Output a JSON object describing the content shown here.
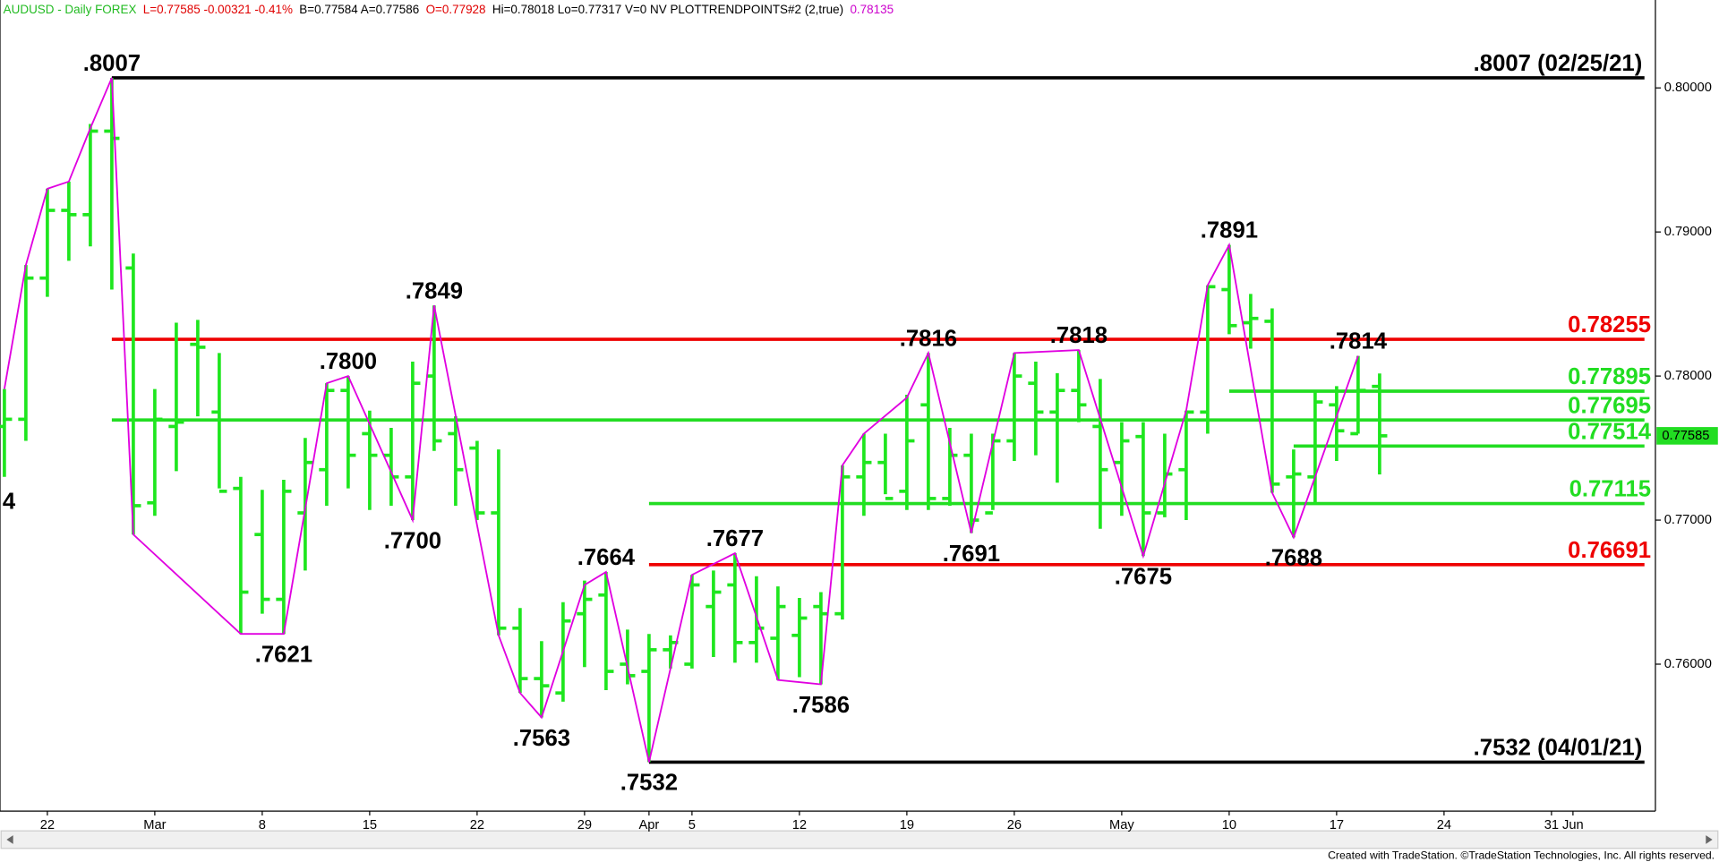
{
  "chart_data": {
    "type": "ohlc",
    "header": [
      {
        "text": "AUDUSD - Daily  FOREX",
        "color": "#22bb22"
      },
      {
        "text": "L=0.77585  -0.00321  -0.41%",
        "color": "#e00000"
      },
      {
        "text": "B=0.77584  A=0.77586",
        "color": "#000000"
      },
      {
        "text": "O=0.77928",
        "color": "#e00000"
      },
      {
        "text": "Hi=0.78018  Lo=0.77317  V=0  NV  PLOTTRENDPOINTS#2 (2,true)",
        "color": "#000000"
      },
      {
        "text": "0.78135",
        "color": "#cc00cc"
      }
    ],
    "footer": "Created with TradeStation. ©TradeStation Technologies, Inc. All rights reserved.",
    "color": "#1ee61e",
    "categories": [
      null,
      null,
      "22",
      null,
      null,
      null,
      null,
      "Mar",
      null,
      null,
      null,
      null,
      "8",
      null,
      null,
      null,
      null,
      "15",
      null,
      null,
      null,
      null,
      "22",
      null,
      null,
      null,
      null,
      "29",
      null,
      null,
      "Apr",
      null,
      "5",
      null,
      null,
      null,
      null,
      "12",
      null,
      null,
      null,
      null,
      "19",
      null,
      null,
      null,
      null,
      "26",
      null,
      null,
      null,
      null,
      "May",
      null,
      null,
      null,
      null,
      "10",
      null,
      null,
      null,
      null,
      "17",
      null,
      null,
      null,
      null,
      "24",
      null,
      null,
      null,
      null,
      "31",
      "Jun",
      null,
      null,
      null
    ],
    "open": [
      0.7765,
      0.777,
      0.7868,
      0.7915,
      0.7912,
      0.797,
      0.7875,
      0.7712,
      0.7765,
      0.7822,
      0.7775,
      0.7722,
      0.769,
      0.7645,
      0.7705,
      0.7735,
      0.779,
      0.776,
      0.7745,
      0.773,
      0.78,
      0.776,
      0.775,
      0.7705,
      0.7625,
      0.759,
      0.758,
      0.7635,
      0.7648,
      0.76,
      0.7595,
      0.761,
      0.76,
      0.764,
      0.7655,
      0.7615,
      0.7618,
      0.762,
      0.764,
      0.7635,
      0.773,
      0.774,
      0.772,
      0.778,
      0.7715,
      0.7745,
      0.7705,
      0.7755,
      0.7795,
      0.7775,
      0.779,
      0.7765,
      0.774,
      0.7758,
      0.7705,
      0.7735,
      0.7775,
      0.786,
      0.7837,
      0.7838,
      0.773,
      0.773,
      0.778,
      0.776,
      0.77928,
      null,
      null,
      null,
      null,
      null,
      null,
      null,
      null,
      null,
      null,
      null,
      null
    ],
    "high": [
      0.7791,
      0.7877,
      0.793,
      0.7935,
      0.7975,
      0.8007,
      0.7885,
      0.7791,
      0.7837,
      0.7839,
      0.7816,
      0.773,
      0.7721,
      0.7728,
      0.7757,
      0.7795,
      0.78,
      0.7776,
      0.7764,
      0.781,
      0.7849,
      0.7772,
      0.7755,
      0.7749,
      0.7639,
      0.7616,
      0.7643,
      0.7658,
      0.7664,
      0.7624,
      0.7621,
      0.762,
      0.7662,
      0.7665,
      0.7677,
      0.7661,
      0.7654,
      0.7646,
      0.765,
      0.7738,
      0.776,
      0.776,
      0.7787,
      0.7816,
      0.7764,
      0.776,
      0.776,
      0.7816,
      0.781,
      0.7802,
      0.7818,
      0.7798,
      0.7768,
      0.7768,
      0.776,
      0.7776,
      0.7863,
      0.7891,
      0.7857,
      0.7847,
      0.7749,
      0.7789,
      0.7793,
      0.7814,
      0.78018,
      null,
      null,
      null,
      null,
      null,
      null,
      null,
      null,
      null,
      null,
      null,
      null
    ],
    "low": [
      0.773,
      0.7755,
      0.7855,
      0.788,
      0.789,
      0.786,
      0.769,
      0.7703,
      0.7734,
      0.7772,
      0.7722,
      0.7621,
      0.7635,
      0.7621,
      0.7665,
      0.771,
      0.7722,
      0.7707,
      0.771,
      0.77,
      0.7748,
      0.771,
      0.77,
      0.762,
      0.758,
      0.7563,
      0.7574,
      0.7598,
      0.7582,
      0.7586,
      0.7532,
      0.7597,
      0.7597,
      0.7605,
      0.7601,
      0.7601,
      0.7589,
      0.7591,
      0.7586,
      0.7631,
      0.7703,
      0.7718,
      0.7707,
      0.7707,
      0.771,
      0.7691,
      0.7707,
      0.7741,
      0.7745,
      0.7726,
      0.7768,
      0.7694,
      0.7703,
      0.7675,
      0.7702,
      0.77,
      0.776,
      0.7829,
      0.7819,
      0.7719,
      0.7688,
      0.7711,
      0.7741,
      0.776,
      0.77317,
      null,
      null,
      null,
      null,
      null,
      null,
      null,
      null,
      null,
      null,
      null,
      null
    ],
    "close": [
      0.777,
      0.7868,
      0.7915,
      0.7912,
      0.797,
      0.7965,
      0.771,
      0.777,
      0.7768,
      0.782,
      0.772,
      0.765,
      0.7645,
      0.772,
      0.774,
      0.779,
      0.7745,
      0.7745,
      0.773,
      0.7795,
      0.7755,
      0.7735,
      0.7705,
      0.7625,
      0.759,
      0.7585,
      0.763,
      0.7645,
      0.7595,
      0.7592,
      0.761,
      0.7615,
      0.7655,
      0.765,
      0.7615,
      0.7625,
      0.764,
      0.7632,
      0.7635,
      0.773,
      0.774,
      0.7715,
      0.7755,
      0.7715,
      0.7745,
      0.77,
      0.7755,
      0.78,
      0.7775,
      0.779,
      0.778,
      0.7735,
      0.7755,
      0.7705,
      0.7732,
      0.7775,
      0.7862,
      0.7835,
      0.784,
      0.7725,
      0.7732,
      0.7782,
      0.7762,
      0.779,
      0.77585,
      null,
      null,
      null,
      null,
      null,
      null,
      null,
      null,
      null,
      null,
      null,
      null
    ],
    "zigzag": {
      "color": "#e000e0",
      "x": [
        0,
        1,
        2,
        3,
        4,
        5,
        6,
        11,
        13,
        15,
        16,
        19,
        20,
        23,
        24,
        25,
        27,
        28,
        30,
        32,
        34,
        36,
        38,
        39,
        40,
        42,
        43,
        45,
        47,
        50,
        53,
        55,
        56,
        57,
        59,
        60,
        63
      ],
      "values": [
        0.7791,
        0.7877,
        0.793,
        0.7935,
        0.7972,
        0.8007,
        0.769,
        0.7621,
        0.7621,
        0.7795,
        0.78,
        0.77,
        0.7849,
        0.762,
        0.758,
        0.7563,
        0.7655,
        0.7664,
        0.7532,
        0.7662,
        0.7677,
        0.7589,
        0.7586,
        0.7738,
        0.776,
        0.7785,
        0.7816,
        0.7691,
        0.7816,
        0.7818,
        0.7675,
        0.7776,
        0.7863,
        0.7891,
        0.7719,
        0.7688,
        0.7814
      ]
    },
    "pivots": [
      {
        "index": 0,
        "value": 0.7712,
        "label": "4",
        "position": "left"
      },
      {
        "index": 5,
        "value": 0.8007,
        "label": ".8007",
        "position": "above"
      },
      {
        "index": 13,
        "value": 0.7621,
        "label": ".7621",
        "position": "below"
      },
      {
        "index": 16,
        "value": 0.78,
        "label": ".7800",
        "position": "above"
      },
      {
        "index": 19,
        "value": 0.77,
        "label": ".7700",
        "position": "below"
      },
      {
        "index": 20,
        "value": 0.7849,
        "label": ".7849",
        "position": "above"
      },
      {
        "index": 25,
        "value": 0.7563,
        "label": ".7563",
        "position": "below"
      },
      {
        "index": 28,
        "value": 0.7664,
        "label": ".7664",
        "position": "above"
      },
      {
        "index": 30,
        "value": 0.7532,
        "label": ".7532",
        "position": "below"
      },
      {
        "index": 34,
        "value": 0.7677,
        "label": ".7677",
        "position": "above"
      },
      {
        "index": 38,
        "value": 0.7586,
        "label": ".7586",
        "position": "below"
      },
      {
        "index": 43,
        "value": 0.7816,
        "label": ".7816",
        "position": "above"
      },
      {
        "index": 45,
        "value": 0.7691,
        "label": ".7691",
        "position": "below"
      },
      {
        "index": 50,
        "value": 0.7818,
        "label": ".7818",
        "position": "above"
      },
      {
        "index": 53,
        "value": 0.7675,
        "label": ".7675",
        "position": "below"
      },
      {
        "index": 57,
        "value": 0.7891,
        "label": ".7891",
        "position": "above"
      },
      {
        "index": 60,
        "value": 0.7688,
        "label": ".7688",
        "position": "below"
      },
      {
        "index": 63,
        "value": 0.7814,
        "label": ".7814",
        "position": "above"
      }
    ],
    "levels": [
      {
        "value": 0.8007,
        "label": ".8007 (02/25/21)",
        "color": "#000000",
        "start": 5
      },
      {
        "value": 0.7532,
        "label": ".7532 (04/01/21)",
        "color": "#000000",
        "start": 30
      },
      {
        "value": 0.78255,
        "label": "0.78255",
        "color": "#ee0000",
        "start": 5
      },
      {
        "value": 0.77895,
        "label": "0.77895",
        "color": "#22dd22",
        "start": 57
      },
      {
        "value": 0.77695,
        "label": "0.77695",
        "color": "#22dd22",
        "start": 5
      },
      {
        "value": 0.77514,
        "label": "0.77514",
        "color": "#22dd22",
        "start": 60
      },
      {
        "value": 0.77115,
        "label": "0.77115",
        "color": "#22dd22",
        "start": 30
      },
      {
        "value": 0.76691,
        "label": "0.76691",
        "color": "#ee0000",
        "start": 30
      }
    ],
    "ylim": [
      0.7498,
      0.8061
    ],
    "yticks": [
      {
        "value": 0.76,
        "label": "0.76000"
      },
      {
        "value": 0.77,
        "label": "0.77000"
      },
      {
        "value": 0.78,
        "label": "0.78000"
      },
      {
        "value": 0.79,
        "label": "0.79000"
      },
      {
        "value": 0.8,
        "label": "0.80000"
      }
    ]
  }
}
